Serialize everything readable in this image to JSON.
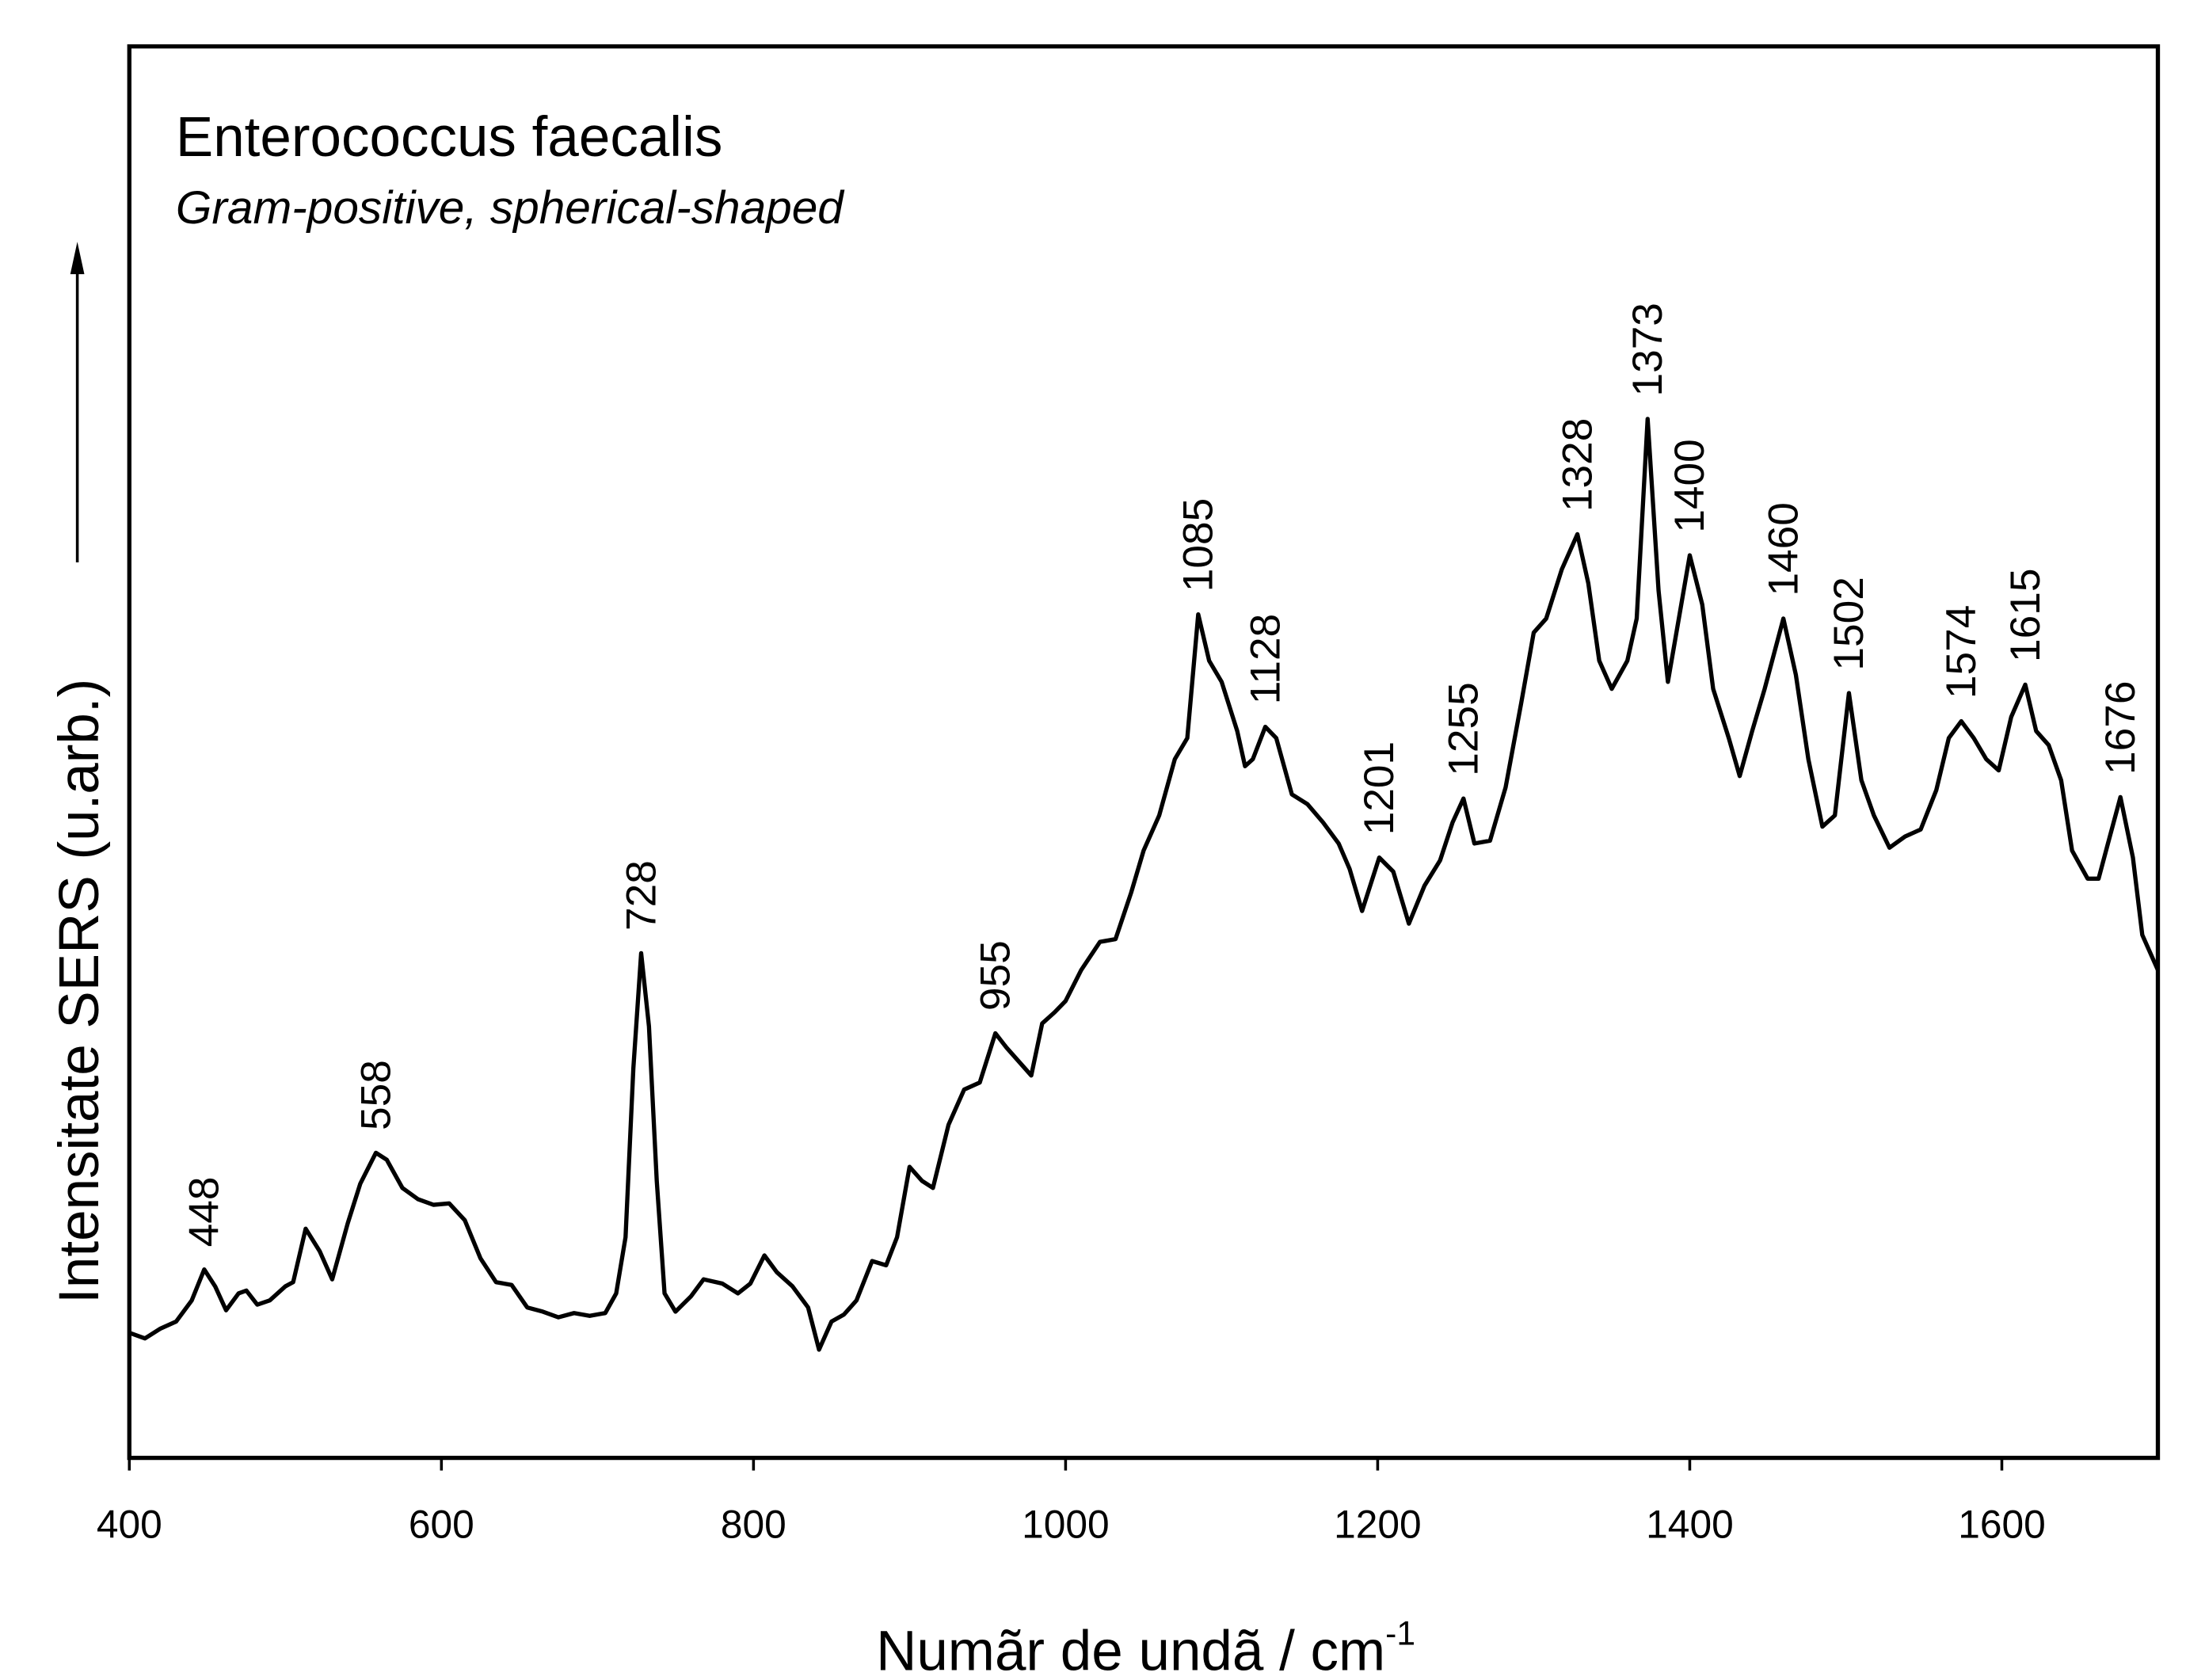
{
  "chart_data": {
    "type": "line",
    "title": "Enterococcus faecalis",
    "subtitle": "Gram-positive, spherical-shaped",
    "x_label": "Numãr de undã / cm",
    "x_label_sup": "-1",
    "y_label": "Intensitate SERS (u.arb.)",
    "xlim": [
      400,
      1700
    ],
    "xticks": [
      400,
      600,
      800,
      1000,
      1200,
      1400,
      1600
    ],
    "ylim": [
      0,
      1000
    ],
    "color": "#000000",
    "subtitle_color": "#800080",
    "x": [
      400,
      410,
      420,
      430,
      440,
      448,
      455,
      462,
      470,
      475,
      482,
      490,
      500,
      505,
      513,
      522,
      530,
      540,
      548,
      558,
      565,
      575,
      585,
      595,
      605,
      615,
      625,
      635,
      645,
      655,
      665,
      675,
      685,
      695,
      705,
      712,
      718,
      723,
      728,
      733,
      738,
      743,
      750,
      760,
      768,
      780,
      790,
      798,
      807,
      815,
      825,
      835,
      842,
      850,
      858,
      866,
      876,
      885,
      892,
      900,
      908,
      915,
      925,
      935,
      945,
      955,
      962,
      970,
      978,
      985,
      993,
      1000,
      1010,
      1022,
      1032,
      1042,
      1050,
      1060,
      1070,
      1078,
      1085,
      1092,
      1100,
      1110,
      1115,
      1120,
      1128,
      1135,
      1145,
      1155,
      1165,
      1175,
      1182,
      1190,
      1201,
      1210,
      1220,
      1230,
      1240,
      1248,
      1255,
      1262,
      1272,
      1282,
      1292,
      1300,
      1308,
      1318,
      1328,
      1335,
      1342,
      1350,
      1360,
      1366,
      1373,
      1380,
      1386,
      1393,
      1400,
      1408,
      1415,
      1425,
      1432,
      1440,
      1448,
      1460,
      1468,
      1476,
      1485,
      1493,
      1502,
      1510,
      1518,
      1528,
      1538,
      1548,
      1558,
      1566,
      1574,
      1582,
      1590,
      1598,
      1606,
      1615,
      1622,
      1630,
      1638,
      1645,
      1655,
      1662,
      1668,
      1676,
      1684,
      1690,
      1700
    ],
    "values": [
      89,
      85,
      92,
      97,
      112,
      134,
      122,
      105,
      117,
      119,
      109,
      112,
      122,
      125,
      163,
      147,
      127,
      167,
      195,
      217,
      212,
      192,
      184,
      180,
      181,
      169,
      142,
      125,
      123,
      107,
      104,
      100,
      103,
      101,
      103,
      117,
      157,
      277,
      359,
      307,
      197,
      117,
      104,
      115,
      127,
      124,
      117,
      124,
      144,
      132,
      122,
      107,
      77,
      97,
      102,
      112,
      140,
      137,
      157,
      207,
      197,
      192,
      237,
      262,
      267,
      302,
      292,
      282,
      272,
      309,
      317,
      325,
      347,
      367,
      369,
      402,
      432,
      457,
      497,
      512,
      600,
      567,
      552,
      517,
      492,
      497,
      520,
      512,
      472,
      465,
      452,
      437,
      419,
      389,
      427,
      417,
      380,
      407,
      425,
      452,
      469,
      437,
      439,
      477,
      537,
      587,
      597,
      632,
      657,
      622,
      567,
      547,
      567,
      597,
      739,
      617,
      552,
      597,
      642,
      607,
      547,
      512,
      485,
      517,
      547,
      597,
      557,
      497,
      449,
      457,
      544,
      482,
      457,
      434,
      442,
      447,
      475,
      512,
      524,
      512,
      497,
      489,
      527,
      550,
      517,
      507,
      482,
      432,
      412,
      412,
      437,
      470,
      427,
      372,
      347
    ],
    "peak_labels": [
      448,
      558,
      728,
      955,
      1085,
      1128,
      1201,
      1255,
      1328,
      1373,
      1400,
      1460,
      1502,
      1574,
      1615,
      1676
    ]
  }
}
